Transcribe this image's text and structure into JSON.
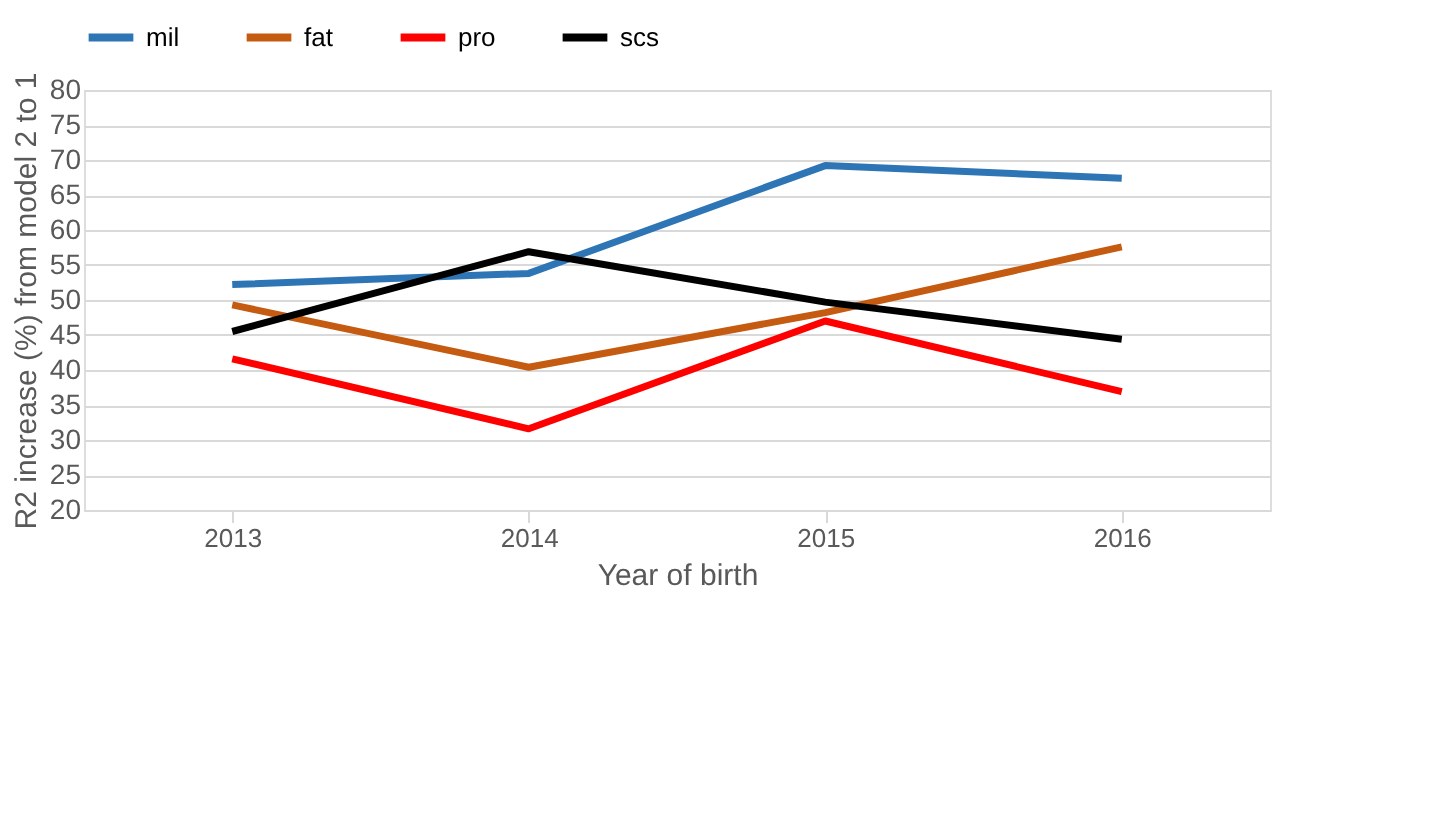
{
  "chart_data": {
    "type": "line",
    "xlabel": "Year of birth",
    "ylabel": "R2 increase (%) from model 2 to 1",
    "categories": [
      "2013",
      "2014",
      "2015",
      "2016"
    ],
    "series": [
      {
        "name": "mil",
        "color": "#2e75b6",
        "values": [
          52.2,
          53.8,
          69.2,
          67.4
        ]
      },
      {
        "name": "fat",
        "color": "#c55a11",
        "values": [
          49.3,
          40.4,
          48.2,
          57.6
        ]
      },
      {
        "name": "pro",
        "color": "#ff0000",
        "values": [
          41.6,
          31.6,
          47.0,
          36.9
        ]
      },
      {
        "name": "scs",
        "color": "#000000",
        "values": [
          45.5,
          56.9,
          49.7,
          44.4
        ]
      }
    ],
    "ylim": [
      20,
      80
    ],
    "yticks": [
      20,
      25,
      30,
      35,
      40,
      45,
      50,
      55,
      60,
      65,
      70,
      75,
      80
    ],
    "grid": "y",
    "legend": "top",
    "marker": "none",
    "line_style": "solid"
  }
}
